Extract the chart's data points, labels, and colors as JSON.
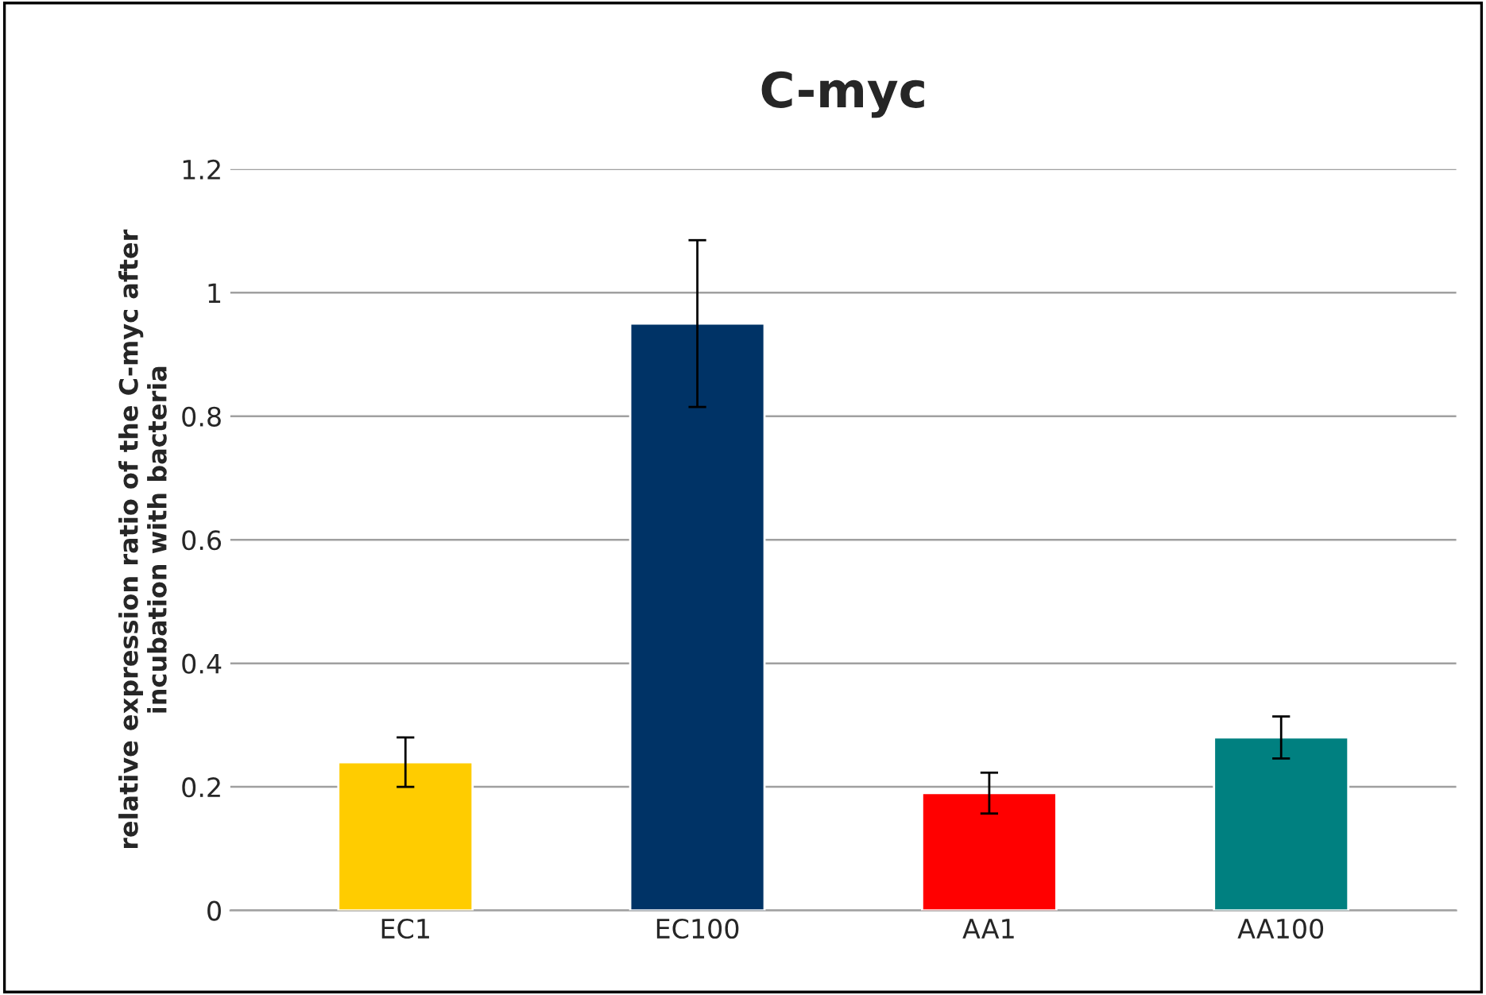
{
  "chart_data": {
    "type": "bar",
    "title": "C-myc",
    "ylabel": "relative expression ratio of the C-myc after\nincubation with bacteria",
    "categories": [
      "EC1",
      "EC100",
      "AA1",
      "AA100"
    ],
    "values": [
      0.24,
      0.95,
      0.19,
      0.28
    ],
    "errors": [
      0.04,
      0.135,
      0.033,
      0.034
    ],
    "colors": [
      "#ffcc00",
      "#003366",
      "#ff0000",
      "#008080"
    ],
    "ylim": [
      0,
      1.2
    ],
    "yticks": [
      {
        "value": 0,
        "label": "0"
      },
      0.2,
      0.4,
      0.6,
      0.8,
      {
        "value": 1,
        "label": "1"
      },
      1.2
    ],
    "grid": "y"
  }
}
